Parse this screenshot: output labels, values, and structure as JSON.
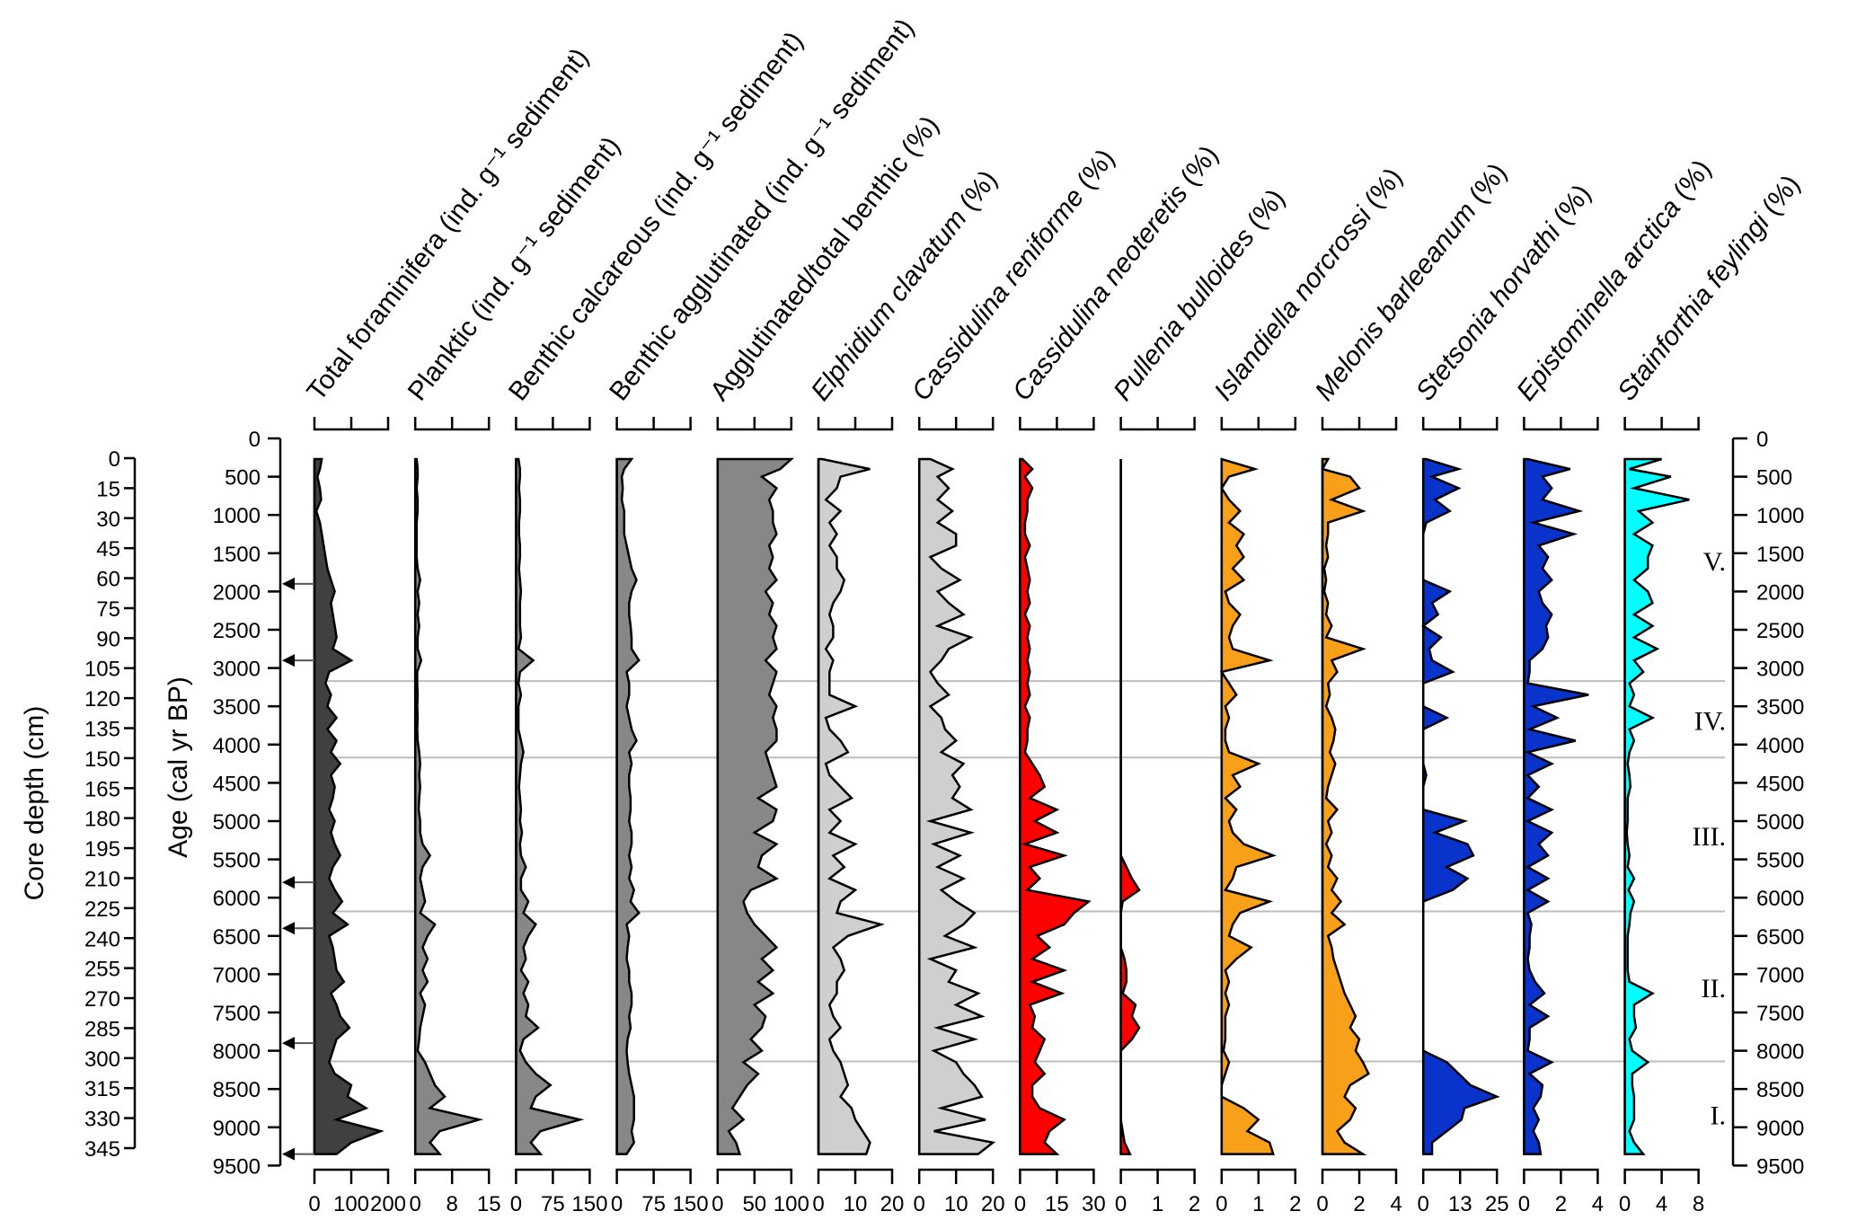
{
  "chart_data": {
    "type": "area",
    "title": "",
    "left_axes": [
      {
        "label": "Core depth (cm)",
        "ticks": [
          0,
          15,
          30,
          45,
          60,
          75,
          90,
          105,
          120,
          135,
          150,
          165,
          180,
          195,
          210,
          225,
          240,
          255,
          270,
          285,
          300,
          315,
          330,
          345
        ],
        "range": [
          0,
          345
        ]
      },
      {
        "label": "Age (cal yr BP)",
        "ticks": [
          0,
          500,
          1000,
          1500,
          2000,
          2500,
          3000,
          3500,
          4000,
          4500,
          5000,
          5500,
          6000,
          6500,
          7000,
          7500,
          8000,
          8500,
          9000,
          9500
        ],
        "range": [
          0,
          9500
        ]
      }
    ],
    "right_axis": {
      "label": "",
      "ticks": [
        0,
        500,
        1000,
        1500,
        2000,
        2500,
        3000,
        3500,
        4000,
        4500,
        5000,
        5500,
        6000,
        6500,
        7000,
        7500,
        8000,
        8500,
        9000,
        9500
      ],
      "range": [
        0,
        9500
      ]
    },
    "dating_arrows_age": [
      1900,
      2900,
      5800,
      6400,
      7900,
      9350
    ],
    "zones": [
      {
        "label": "V.",
        "from": 0,
        "to": 3170
      },
      {
        "label": "IV.",
        "from": 3170,
        "to": 4170
      },
      {
        "label": "III.",
        "from": 4170,
        "to": 6180
      },
      {
        "label": "II.",
        "from": 6180,
        "to": 8140
      },
      {
        "label": "I.",
        "from": 8140,
        "to": 9500
      }
    ],
    "zone_boundaries_age": [
      3170,
      4170,
      6180,
      8140
    ],
    "age": [
      270,
      400,
      500,
      650,
      800,
      950,
      1100,
      1250,
      1400,
      1550,
      1700,
      1850,
      2000,
      2150,
      2300,
      2450,
      2600,
      2750,
      2900,
      3050,
      3200,
      3350,
      3500,
      3650,
      3800,
      3950,
      4100,
      4250,
      4400,
      4550,
      4700,
      4850,
      5000,
      5150,
      5300,
      5450,
      5600,
      5750,
      5900,
      6050,
      6200,
      6350,
      6500,
      6650,
      6800,
      6950,
      7100,
      7250,
      7400,
      7550,
      7700,
      7850,
      8000,
      8150,
      8300,
      8450,
      8600,
      8750,
      8900,
      9050,
      9200,
      9350
    ],
    "series": [
      {
        "name": "Total foraminifera (ind. g⁻¹ sediment)",
        "italic_part": "",
        "color": "#404040",
        "xlim": [
          0,
          200
        ],
        "xticks": [
          "0",
          "100",
          "200"
        ],
        "values": [
          20,
          15,
          8,
          15,
          18,
          5,
          15,
          20,
          25,
          30,
          35,
          45,
          55,
          45,
          50,
          55,
          60,
          50,
          100,
          40,
          30,
          45,
          35,
          60,
          35,
          60,
          45,
          70,
          45,
          55,
          50,
          40,
          55,
          45,
          55,
          70,
          50,
          40,
          55,
          75,
          50,
          90,
          40,
          50,
          55,
          60,
          80,
          45,
          60,
          70,
          95,
          60,
          50,
          40,
          55,
          100,
          90,
          140,
          60,
          180,
          100,
          60
        ]
      },
      {
        "name": "Planktic (ind. g⁻¹ sediment)",
        "italic_part": "",
        "color": "#878787",
        "xlim": [
          0,
          15
        ],
        "xticks": [
          "0",
          "8",
          "15"
        ],
        "values": [
          0.3,
          0.5,
          0.5,
          0.3,
          0.5,
          0.5,
          0.3,
          0.3,
          0.3,
          0.3,
          0.5,
          1,
          0.5,
          0.8,
          0.5,
          0.8,
          0.5,
          0.5,
          1.2,
          0.4,
          0.4,
          0.5,
          0.4,
          0.5,
          0.4,
          0.5,
          0.8,
          1,
          0.8,
          1,
          0.8,
          0.7,
          1,
          1,
          1.5,
          3,
          1.5,
          1,
          1.5,
          2,
          1,
          4,
          2.5,
          1.5,
          2.5,
          1.5,
          2.5,
          1,
          2,
          1.5,
          1,
          0.8,
          0.5,
          2,
          3,
          4,
          6,
          3,
          13,
          5,
          3,
          5
        ]
      },
      {
        "name": "Benthic calcareous (ind. g⁻¹ sediment)",
        "italic_part": "",
        "color": "#878787",
        "xlim": [
          0,
          150
        ],
        "xticks": [
          "0",
          "75",
          "150"
        ],
        "values": [
          5,
          8,
          8,
          6,
          8,
          8,
          6,
          6,
          8,
          8,
          6,
          8,
          10,
          8,
          8,
          8,
          10,
          5,
          35,
          8,
          5,
          10,
          5,
          5,
          5,
          10,
          15,
          10,
          8,
          6,
          8,
          10,
          8,
          12,
          8,
          10,
          20,
          10,
          10,
          25,
          15,
          40,
          25,
          15,
          20,
          10,
          25,
          15,
          25,
          20,
          45,
          15,
          8,
          20,
          40,
          70,
          40,
          30,
          130,
          50,
          30,
          50
        ]
      },
      {
        "name": "Benthic agglutinated (ind. g⁻¹ sediment)",
        "italic_part": "",
        "color": "#878787",
        "xlim": [
          0,
          150
        ],
        "xticks": [
          "0",
          "75",
          "150"
        ],
        "values": [
          30,
          15,
          10,
          12,
          10,
          15,
          15,
          15,
          20,
          25,
          30,
          40,
          30,
          25,
          25,
          28,
          30,
          30,
          45,
          20,
          25,
          25,
          20,
          25,
          30,
          40,
          25,
          30,
          25,
          25,
          28,
          28,
          25,
          30,
          30,
          25,
          30,
          25,
          35,
          28,
          45,
          20,
          25,
          22,
          20,
          25,
          25,
          30,
          30,
          25,
          28,
          22,
          20,
          22,
          25,
          30,
          35,
          35,
          35,
          30,
          35,
          20
        ]
      },
      {
        "name": "Agglutinated/total benthic (%)",
        "italic_part": "",
        "color": "#878787",
        "xlim": [
          0,
          100
        ],
        "xticks": [
          "0",
          "50",
          "100"
        ],
        "values": [
          100,
          85,
          60,
          80,
          70,
          75,
          75,
          80,
          70,
          75,
          70,
          80,
          65,
          75,
          70,
          80,
          75,
          80,
          65,
          80,
          75,
          70,
          80,
          75,
          80,
          80,
          65,
          70,
          75,
          80,
          55,
          80,
          75,
          50,
          80,
          60,
          55,
          80,
          45,
          35,
          40,
          50,
          65,
          80,
          60,
          75,
          55,
          75,
          50,
          65,
          60,
          45,
          60,
          35,
          55,
          40,
          30,
          20,
          35,
          15,
          25,
          30
        ]
      },
      {
        "name": "Elphidium clavatum (%)",
        "italic_part": "Elphidium clavatum",
        "color": "#cfcfcf",
        "xlim": [
          0,
          20
        ],
        "xticks": [
          "0",
          "10",
          "20"
        ],
        "values": [
          1,
          14,
          6,
          5,
          2,
          6,
          3,
          5,
          3,
          5,
          5,
          7,
          6,
          4,
          3,
          4,
          4,
          2,
          4,
          3,
          3,
          3,
          10,
          2,
          3,
          6,
          8,
          2,
          3,
          6,
          9,
          3,
          6,
          3,
          10,
          4,
          7,
          3,
          10,
          6,
          5,
          17,
          8,
          4,
          6,
          7,
          5,
          5,
          3,
          4,
          6,
          3,
          4,
          6,
          7,
          8,
          6,
          9,
          10,
          12,
          14,
          13
        ]
      },
      {
        "name": "Cassidulina reniforme (%)",
        "italic_part": "Cassidulina reniforme",
        "color": "#cfcfcf",
        "xlim": [
          0,
          20
        ],
        "xticks": [
          "0",
          "10",
          "20"
        ],
        "values": [
          3,
          9,
          5,
          8,
          5,
          9,
          5,
          10,
          10,
          3,
          6,
          11,
          5,
          8,
          12,
          5,
          14,
          8,
          6,
          3,
          5,
          8,
          3,
          6,
          7,
          10,
          6,
          12,
          9,
          11,
          9,
          14,
          3,
          14,
          4,
          11,
          5,
          12,
          6,
          10,
          15,
          12,
          7,
          15,
          3,
          10,
          8,
          16,
          10,
          17,
          5,
          15,
          4,
          10,
          12,
          15,
          17,
          6,
          18,
          4,
          20,
          16
        ]
      },
      {
        "name": "Cassidulina neoteretis (%)",
        "italic_part": "Cassidulina neoteretis",
        "color": "#ff0000",
        "xlim": [
          0,
          30
        ],
        "xticks": [
          "0",
          "15",
          "30"
        ],
        "values": [
          1,
          5,
          2,
          5,
          3,
          3,
          2,
          2,
          4,
          2,
          3,
          4,
          3,
          4,
          2,
          4,
          3,
          4,
          3,
          4,
          3,
          4,
          2,
          4,
          3,
          3,
          2,
          5,
          8,
          10,
          4,
          15,
          6,
          15,
          2,
          18,
          4,
          8,
          3,
          28,
          22,
          18,
          7,
          12,
          5,
          18,
          5,
          17,
          4,
          6,
          5,
          10,
          8,
          6,
          10,
          5,
          5,
          8,
          18,
          12,
          10,
          15
        ]
      },
      {
        "name": "Pullenia bulloides (%)",
        "italic_part": "Pullenia bulloides",
        "color": "#ff0000",
        "xlim": [
          0,
          2
        ],
        "xticks": [
          "0",
          "1",
          "2"
        ],
        "values": [
          0,
          0,
          0,
          0,
          0,
          0,
          0,
          0,
          0,
          0,
          0,
          0,
          0,
          0,
          0,
          0,
          0,
          0,
          0,
          0,
          0,
          0,
          0,
          0,
          0,
          0,
          0,
          0,
          0,
          0,
          0,
          0,
          0,
          0,
          0,
          0,
          0.15,
          0.3,
          0.5,
          0.05,
          0,
          0,
          0,
          0,
          0.1,
          0.15,
          0.15,
          0.05,
          0.4,
          0.3,
          0.5,
          0.3,
          0,
          0,
          0,
          0,
          0,
          0,
          0,
          0.05,
          0.1,
          0.25
        ]
      },
      {
        "name": "Islandiella norcrossi (%)",
        "italic_part": "Islandiella norcrossi",
        "color": "#f8a01a",
        "xlim": [
          0,
          2
        ],
        "xticks": [
          "0",
          "1",
          "2"
        ],
        "values": [
          0,
          0.9,
          0.2,
          0,
          0.2,
          0.5,
          0.2,
          0.6,
          0.4,
          0.6,
          0.3,
          0.6,
          0.1,
          0.2,
          0.5,
          0.3,
          0.2,
          0.3,
          1.3,
          0,
          0.2,
          0.4,
          0.1,
          0.2,
          0.1,
          0.1,
          0.2,
          1,
          0.3,
          0.5,
          0.1,
          0.4,
          0.2,
          0.3,
          0.6,
          1.4,
          0.4,
          0.3,
          0.1,
          1.3,
          0.5,
          0.3,
          0.2,
          0.8,
          0.4,
          0.1,
          0.2,
          0.1,
          0.2,
          0.1,
          0.1,
          0.1,
          0.05,
          0.2,
          0.1,
          0,
          0,
          0.6,
          1,
          0.7,
          1.3,
          1.4
        ]
      },
      {
        "name": "Melonis barleeanum (%)",
        "italic_part": "Melonis barleeanum",
        "color": "#f8a01a",
        "xlim": [
          0,
          4
        ],
        "xticks": [
          "0",
          "2",
          "4"
        ],
        "values": [
          0.3,
          0,
          1.5,
          2,
          0.5,
          2.2,
          0.3,
          0.3,
          0.2,
          0.3,
          0.1,
          0.2,
          0.1,
          0.3,
          0.2,
          0.5,
          0.2,
          2.2,
          0.5,
          0.8,
          0.3,
          0.4,
          0.2,
          0.5,
          0.7,
          0.6,
          0.4,
          0.7,
          0.5,
          0.3,
          0.2,
          0.8,
          0.3,
          0.5,
          0.2,
          0.5,
          0.3,
          0.8,
          0.5,
          1,
          0.5,
          1.2,
          0.3,
          0.5,
          0.6,
          0.8,
          1,
          1.2,
          1.5,
          1.8,
          1.5,
          2,
          1.8,
          2.2,
          2.5,
          1.5,
          1.2,
          1.8,
          1.5,
          0.8,
          1.2,
          2.2
        ]
      },
      {
        "name": "Stetsonia horvathi (%)",
        "italic_part": "Stetsonia horvathi",
        "color": "#0a33cc",
        "xlim": [
          0,
          25
        ],
        "xticks": [
          "0",
          "13",
          "25"
        ],
        "values": [
          1,
          12,
          3,
          12,
          4,
          9,
          1,
          0,
          0,
          0,
          0,
          0,
          9,
          3,
          5,
          0,
          6,
          2,
          3,
          10,
          0,
          0,
          0,
          8,
          0,
          0,
          0,
          0,
          1,
          0,
          0,
          0,
          14,
          4,
          15,
          17,
          8,
          15,
          10,
          0,
          0,
          0,
          0,
          0,
          0,
          0,
          0,
          0,
          0,
          0,
          0,
          0,
          0,
          8,
          12,
          16,
          25,
          14,
          13,
          8,
          3,
          3
        ]
      },
      {
        "name": "Epistominella arctica (%)",
        "italic_part": "Epistominella arctica",
        "color": "#0a33cc",
        "xlim": [
          0,
          4
        ],
        "xticks": [
          "0",
          "2",
          "4"
        ],
        "values": [
          0.2,
          2.5,
          1,
          1.5,
          1,
          3,
          0.5,
          2.7,
          0.8,
          1.3,
          1,
          1.5,
          0.8,
          1,
          1.5,
          1.2,
          1.3,
          1,
          0.3,
          0.3,
          0.2,
          3.5,
          0.5,
          1.8,
          0.3,
          2.8,
          0.2,
          1.5,
          0.2,
          0.8,
          0.2,
          1.5,
          0.2,
          1.5,
          0.8,
          1.3,
          0.2,
          1.3,
          0.2,
          1.3,
          0.2,
          0.4,
          0.3,
          0.3,
          0.2,
          0.3,
          0.6,
          1.1,
          0.3,
          1.3,
          0.3,
          0.3,
          0.2,
          1.5,
          0.3,
          1,
          0.9,
          0.5,
          0.8,
          0.5,
          0.8,
          0.9
        ]
      },
      {
        "name": "Stainforthia feylingi (%)",
        "italic_part": "Stainforthia feylingi",
        "color": "#00ffff",
        "xlim": [
          0,
          8
        ],
        "xticks": [
          "0",
          "4",
          "8"
        ],
        "values": [
          4,
          0.5,
          5,
          1,
          7,
          1.5,
          3,
          1,
          3,
          2.5,
          2.5,
          1,
          2.5,
          3,
          1,
          3,
          1,
          3.5,
          1,
          2,
          0.5,
          1,
          0.5,
          3,
          0.5,
          1,
          0.5,
          0.3,
          0.5,
          0.6,
          0.3,
          0.3,
          0.3,
          0.2,
          0.3,
          0.5,
          0.3,
          1,
          0.4,
          1,
          0.6,
          0.5,
          0.3,
          0.3,
          0.3,
          0.3,
          0.5,
          3,
          1,
          1,
          1.2,
          0.5,
          0.8,
          2.5,
          0.8,
          0.8,
          1,
          1,
          1,
          0.5,
          1,
          2
        ]
      }
    ]
  }
}
